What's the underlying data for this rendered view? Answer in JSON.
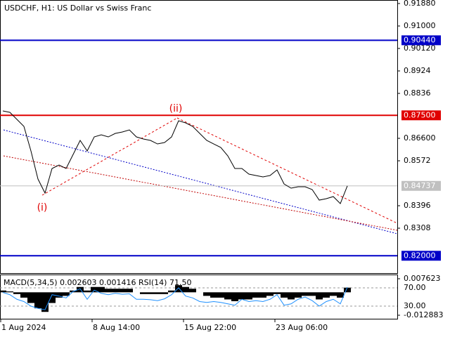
{
  "chart_data": [
    {
      "type": "line",
      "title": "USDCHF, H1:  US Dollar vs Swiss Franc",
      "categories": [
        "1 Aug 2024",
        null,
        null,
        null,
        null,
        null,
        null,
        null,
        null,
        null,
        null,
        null,
        null,
        "8 Aug 14:00",
        null,
        null,
        null,
        null,
        null,
        null,
        null,
        null,
        null,
        null,
        null,
        null,
        "15 Aug 22:00",
        null,
        null,
        null,
        null,
        null,
        null,
        null,
        null,
        null,
        null,
        null,
        null,
        "23 Aug 06:00",
        null,
        null,
        null,
        null,
        null,
        null,
        null,
        null,
        null,
        null
      ],
      "color": "#000000",
      "values": [
        0.87673,
        0.87618,
        0.87343,
        0.87068,
        0.86105,
        0.85005,
        0.84455,
        0.85418,
        0.85555,
        0.85418,
        0.85968,
        0.86518,
        0.86105,
        0.86655,
        0.86738,
        0.86655,
        0.86793,
        0.86848,
        0.8693,
        0.86655,
        0.86573,
        0.86518,
        0.8638,
        0.86435,
        0.86655,
        0.87288,
        0.87205,
        0.87068,
        0.86793,
        0.86518,
        0.8638,
        0.86243,
        0.85913,
        0.85418,
        0.85418,
        0.85198,
        0.85143,
        0.85088,
        0.85143,
        0.85363,
        0.84813,
        0.84648,
        0.84703,
        0.84703,
        0.84593,
        0.8418,
        0.84235,
        0.84318,
        0.84043,
        0.84737
      ],
      "last_price": 0.84737,
      "ylim": [
        0.81293,
        0.92018
      ],
      "yticks": [
        {
          "value": 0.9188,
          "label": "0.91880"
        },
        {
          "value": 0.91,
          "label": "0.91000"
        },
        {
          "value": 0.9012,
          "label": "0.90120"
        },
        0.8924,
        0.8836,
        {
          "value": 0.866,
          "label": "0.86600"
        },
        0.8572,
        0.8396,
        0.8308
      ],
      "levels": [
        {
          "value": 0.9044,
          "label": "0.90440",
          "color": "#0000c8"
        },
        {
          "value": 0.875,
          "label": "0.87500",
          "color": "#e00000"
        },
        {
          "value": 0.82,
          "label": "0.82000",
          "color": "#0000c8"
        }
      ],
      "annotations": [
        "(i)",
        "(ii)"
      ]
    },
    {
      "type": "bar",
      "title": "MACD(5,34,5) 0.002603 0.001416 RSI(14) 71.50",
      "ylim": [
        -0.012883,
        0.007623
      ],
      "yticks": [
        0.007623,
        -0.012883
      ],
      "y2lim": [
        10,
        90
      ],
      "y2ticks": [
        {
          "value": 70,
          "label": "70.00"
        },
        {
          "value": 30,
          "label": "30.00"
        }
      ],
      "series": [
        {
          "color": "#000000",
          "values": [
            0.001,
            0.0005,
            -0.001,
            -0.003,
            -0.006,
            -0.009,
            -0.011,
            -0.006,
            -0.003,
            -0.002,
            0.001,
            0.003,
            0.001,
            0.003,
            0.003,
            0.002,
            0.002,
            0.002,
            0.002,
            0.0,
            -0.001,
            -0.001,
            -0.001,
            -0.001,
            0.001,
            0.004,
            0.003,
            0.002,
            0.0,
            -0.002,
            -0.003,
            -0.003,
            -0.004,
            -0.005,
            -0.004,
            -0.004,
            -0.003,
            -0.003,
            -0.002,
            -0.001,
            -0.003,
            -0.004,
            -0.003,
            -0.002,
            -0.002,
            -0.004,
            -0.003,
            -0.002,
            -0.003,
            0.002603
          ]
        },
        {
          "type": "line",
          "axis": "y2",
          "color": "#1e90ff",
          "values": [
            60,
            55,
            45,
            40,
            30,
            25,
            22,
            55,
            52,
            48,
            62,
            68,
            45,
            65,
            58,
            55,
            58,
            56,
            57,
            45,
            45,
            44,
            42,
            46,
            55,
            70,
            52,
            48,
            40,
            38,
            40,
            38,
            35,
            32,
            45,
            40,
            42,
            40,
            45,
            55,
            32,
            35,
            45,
            50,
            42,
            30,
            40,
            45,
            35,
            71.5
          ]
        }
      ]
    }
  ]
}
